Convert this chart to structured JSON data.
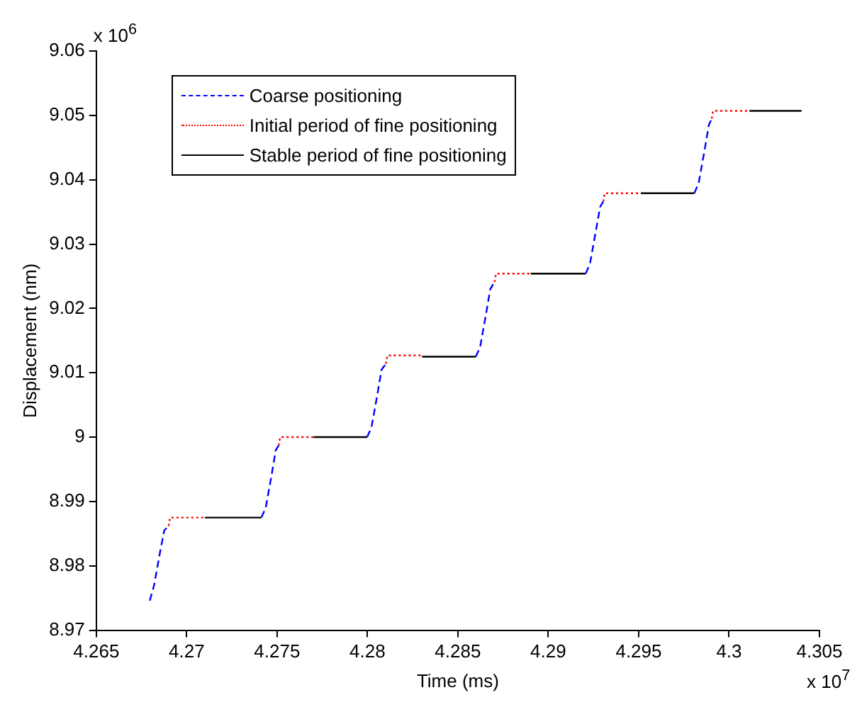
{
  "chart_data": {
    "type": "line",
    "xlabel": "Time (ms)",
    "ylabel": "Displacement (nm)",
    "annotations": [
      "x 10$^{6}$",
      "x 10$^{7}$"
    ],
    "xlim": [
      4.265,
      4.305
    ],
    "xticks": [
      4.265,
      4.27,
      4.275,
      4.28,
      4.285,
      4.29,
      4.295,
      4.3,
      4.305
    ],
    "ylim": [
      8.97,
      9.06
    ],
    "yticks": [
      8.97,
      8.98,
      8.99,
      9,
      9.01,
      9.02,
      9.03,
      9.04,
      9.05,
      9.06
    ],
    "grid": false,
    "legend": "top left",
    "marker": "none",
    "series": [
      {
        "name": "Coarse positioning",
        "color": "#0000ff",
        "line_style": "dashed",
        "x": [
          4.26796,
          4.2682,
          4.26852,
          4.26876,
          4.269,
          4.2715,
          4.27413,
          4.27437,
          4.27469,
          4.27493,
          4.27509,
          4.2775,
          4.27998,
          4.28022,
          4.28054,
          4.28078,
          4.28102,
          4.2835,
          4.28599,
          4.28623,
          4.28655,
          4.28679,
          4.28703,
          4.2895,
          4.29207,
          4.29231,
          4.29263,
          4.29287,
          4.29304,
          4.2955,
          4.29808,
          4.29832,
          4.29864,
          4.29888,
          4.29904
        ],
        "values": [
          8.9746,
          8.977,
          8.982,
          8.9855,
          8.9862,
          null,
          8.9875,
          8.989,
          8.994,
          8.998,
          8.9987,
          null,
          9.0,
          9.0015,
          9.0065,
          9.0105,
          9.0114,
          null,
          9.0125,
          9.014,
          9.019,
          9.023,
          9.0241,
          null,
          9.0254,
          9.027,
          9.032,
          9.0358,
          9.0366,
          null,
          9.0379,
          9.0395,
          9.0445,
          9.0485,
          9.0495
        ]
      },
      {
        "name": "Initial period of fine positioning",
        "color": "#ff0000",
        "line_style": "dotted",
        "x": [
          4.269,
          4.26908,
          4.27101,
          4.273,
          4.27509,
          4.27517,
          4.27702,
          4.279,
          4.28102,
          4.2811,
          4.28302,
          4.285,
          4.28703,
          4.28711,
          4.28903,
          4.291,
          4.29304,
          4.29312,
          4.29512,
          4.297,
          4.29904,
          4.29912,
          4.30113
        ],
        "values": [
          8.9862,
          8.9875,
          8.9875,
          null,
          8.9987,
          9.0,
          9.0,
          null,
          9.0114,
          9.0127,
          9.0127,
          null,
          9.0241,
          9.0254,
          9.0254,
          null,
          9.0366,
          9.0379,
          9.0379,
          null,
          9.0495,
          9.0507,
          9.0507
        ]
      },
      {
        "name": "Stable period of fine positioning",
        "color": "#000000",
        "line_style": "solid",
        "x": [
          4.27101,
          4.27413,
          4.2755,
          4.27702,
          4.27998,
          4.2815,
          4.28302,
          4.28599,
          4.2875,
          4.28903,
          4.29207,
          4.2935,
          4.29512,
          4.29808,
          4.2995,
          4.30113,
          4.30401
        ],
        "values": [
          8.9875,
          8.9875,
          null,
          9.0,
          9.0,
          null,
          9.0125,
          9.0125,
          null,
          9.0254,
          9.0254,
          null,
          9.0379,
          9.0379,
          null,
          9.0507,
          9.0507
        ]
      }
    ]
  }
}
